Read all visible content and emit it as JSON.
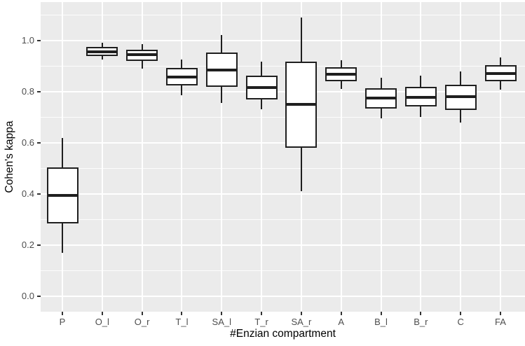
{
  "chart_data": {
    "type": "boxplot",
    "title": "",
    "xlabel": "#Enzian compartment",
    "ylabel": "Cohen's kappa",
    "categories": [
      "P",
      "O_l",
      "O_r",
      "T_l",
      "SA_l",
      "T_r",
      "SA_r",
      "A",
      "B_l",
      "B_r",
      "C",
      "FA"
    ],
    "boxes": [
      {
        "category": "P",
        "low": 0.17,
        "q1": 0.285,
        "median": 0.395,
        "q3": 0.505,
        "high": 0.62
      },
      {
        "category": "O_l",
        "low": 0.925,
        "q1": 0.94,
        "median": 0.956,
        "q3": 0.975,
        "high": 0.99
      },
      {
        "category": "O_r",
        "low": 0.89,
        "q1": 0.92,
        "median": 0.945,
        "q3": 0.965,
        "high": 0.985
      },
      {
        "category": "T_l",
        "low": 0.785,
        "q1": 0.825,
        "median": 0.858,
        "q3": 0.893,
        "high": 0.925
      },
      {
        "category": "SA_l",
        "low": 0.755,
        "q1": 0.818,
        "median": 0.884,
        "q3": 0.952,
        "high": 1.02
      },
      {
        "category": "T_r",
        "low": 0.73,
        "q1": 0.77,
        "median": 0.815,
        "q3": 0.863,
        "high": 0.917
      },
      {
        "category": "SA_r",
        "low": 0.41,
        "q1": 0.58,
        "median": 0.75,
        "q3": 0.918,
        "high": 1.09
      },
      {
        "category": "A",
        "low": 0.81,
        "q1": 0.84,
        "median": 0.867,
        "q3": 0.895,
        "high": 0.923
      },
      {
        "category": "B_l",
        "low": 0.695,
        "q1": 0.733,
        "median": 0.774,
        "q3": 0.813,
        "high": 0.855
      },
      {
        "category": "B_r",
        "low": 0.7,
        "q1": 0.743,
        "median": 0.777,
        "q3": 0.82,
        "high": 0.863
      },
      {
        "category": "C",
        "low": 0.68,
        "q1": 0.728,
        "median": 0.78,
        "q3": 0.828,
        "high": 0.88
      },
      {
        "category": "FA",
        "low": 0.807,
        "q1": 0.842,
        "median": 0.872,
        "q3": 0.903,
        "high": 0.933
      }
    ],
    "ylim": [
      -0.06,
      1.15
    ],
    "yticks": [
      0.0,
      0.2,
      0.4,
      0.6,
      0.8,
      1.0
    ],
    "ytick_labels": [
      "0.0",
      "0.2",
      "0.4",
      "0.6",
      "0.8",
      "1.0"
    ],
    "yticks_minor": [
      0.1,
      0.3,
      0.5,
      0.7,
      0.9,
      1.1
    ],
    "grid": {
      "horizontal_major": true,
      "horizontal_minor": true,
      "vertical_at_categories": true
    },
    "legend": "none",
    "colors": {
      "panel_bg": "#EBEBEB",
      "grid": "#FFFFFF",
      "box_fill": "#FFFFFF",
      "box_stroke": "#1F1F1F",
      "tick_label": "#4D4D4D",
      "axis_title": "#000000",
      "tick_mark": "#333333"
    }
  }
}
